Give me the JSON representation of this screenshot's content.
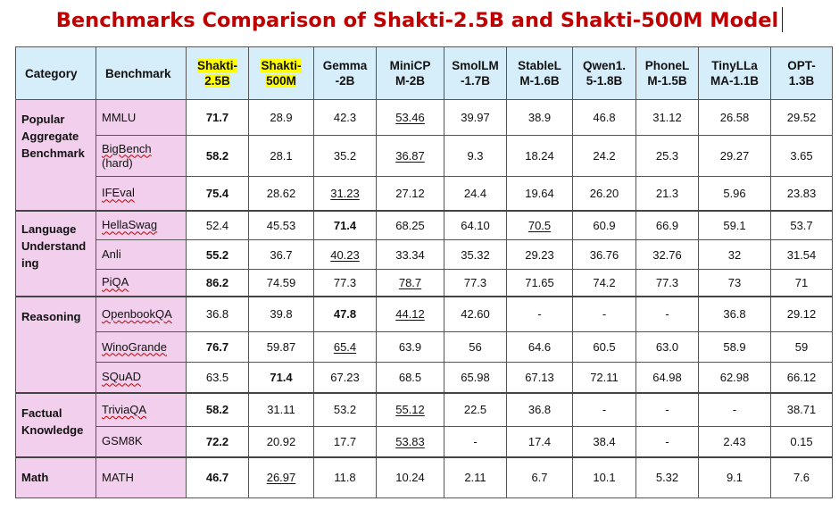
{
  "title": "Benchmarks Comparison of Shakti-2.5B and Shakti-500M Model",
  "headers": [
    {
      "l1": "Category",
      "l2": ""
    },
    {
      "l1": "Benchmark",
      "l2": ""
    },
    {
      "l1": "Shakti-",
      "l2": "2.5B"
    },
    {
      "l1": "Shakti-",
      "l2": "500M"
    },
    {
      "l1": "Gemma",
      "l2": "-2B"
    },
    {
      "l1": "MiniCP",
      "l2": "M-2B"
    },
    {
      "l1": "SmolLM",
      "l2": "-1.7B"
    },
    {
      "l1": "StableL",
      "l2": "M-1.6B"
    },
    {
      "l1": "Qwen1.",
      "l2": "5-1.8B"
    },
    {
      "l1": "PhoneL",
      "l2": "M-1.5B"
    },
    {
      "l1": "TinyLLa",
      "l2": "MA-1.1B"
    },
    {
      "l1": "OPT-",
      "l2": "1.3B"
    }
  ],
  "categories": [
    {
      "l1": "Popular",
      "l2": "Aggregate",
      "l3": "Benchmark"
    },
    {
      "l1": "Language",
      "l2": "Understand",
      "l3": "ing"
    },
    {
      "l1": "Reasoning",
      "l2": "",
      "l3": ""
    },
    {
      "l1": "Factual",
      "l2": "Knowledge",
      "l3": ""
    },
    {
      "l1": "Math",
      "l2": "",
      "l3": ""
    }
  ],
  "rows": [
    {
      "bench": "MMLU",
      "bench2": "",
      "v": [
        "71.7",
        "28.9",
        "42.3",
        "53.46",
        "39.97",
        "38.9",
        "46.8",
        "31.12",
        "26.58",
        "29.52"
      ]
    },
    {
      "bench": "BigBench",
      "bench2": "(hard)",
      "v": [
        "58.2",
        "28.1",
        "35.2",
        "36.87",
        "9.3",
        "18.24",
        "24.2",
        "25.3",
        "29.27",
        "3.65"
      ]
    },
    {
      "bench": "IFEval",
      "bench2": "",
      "v": [
        "75.4",
        "28.62",
        "31.23",
        "27.12",
        "24.4",
        "19.64",
        "26.20",
        "21.3",
        "5.96",
        "23.83"
      ]
    },
    {
      "bench": "HellaSwag",
      "bench2": "",
      "v": [
        "52.4",
        "45.53",
        "71.4",
        "68.25",
        "64.10",
        "70.5",
        "60.9",
        "66.9",
        "59.1",
        "53.7"
      ]
    },
    {
      "bench": "Anli",
      "bench2": "",
      "v": [
        "55.2",
        "36.7",
        "40.23",
        "33.34",
        "35.32",
        "29.23",
        "36.76",
        "32.76",
        "32",
        "31.54"
      ]
    },
    {
      "bench": "PiQA",
      "bench2": "",
      "v": [
        "86.2",
        "74.59",
        "77.3",
        "78.7",
        "77.3",
        "71.65",
        "74.2",
        "77.3",
        "73",
        "71"
      ]
    },
    {
      "bench": "OpenbookQA",
      "bench2": "",
      "v": [
        "36.8",
        "39.8",
        "47.8",
        "44.12",
        "42.60",
        "-",
        "-",
        "-",
        "36.8",
        "29.12"
      ]
    },
    {
      "bench": "WinoGrande",
      "bench2": "",
      "v": [
        "76.7",
        "59.87",
        "65.4",
        "63.9",
        "56",
        "64.6",
        "60.5",
        "63.0",
        "58.9",
        "59"
      ]
    },
    {
      "bench": "SQuAD",
      "bench2": "",
      "v": [
        "63.5",
        "71.4",
        "67.23",
        "68.5",
        "65.98",
        "67.13",
        "72.11",
        "64.98",
        "62.98",
        "66.12"
      ]
    },
    {
      "bench": "TriviaQA",
      "bench2": "",
      "v": [
        "58.2",
        "31.11",
        "53.2",
        "55.12",
        "22.5",
        "36.8",
        "-",
        "-",
        "-",
        "38.71"
      ]
    },
    {
      "bench": "GSM8K",
      "bench2": "",
      "v": [
        "72.2",
        "20.92",
        "17.7",
        "53.83",
        "-",
        "17.4",
        "38.4",
        "-",
        "2.43",
        "0.15"
      ]
    },
    {
      "bench": "MATH",
      "bench2": "",
      "v": [
        "46.7",
        "26.97",
        "11.8",
        "10.24",
        "2.11",
        "6.7",
        "10.1",
        "5.32",
        "9.1",
        "7.6"
      ]
    }
  ]
}
